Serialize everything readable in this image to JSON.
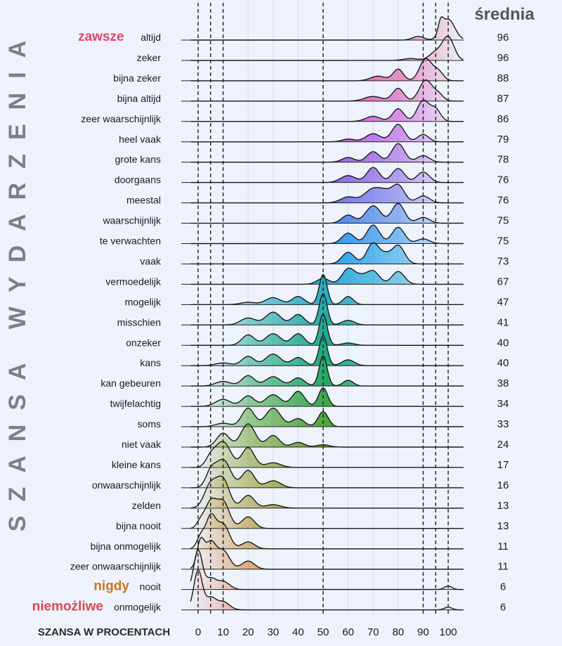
{
  "chart_data": {
    "type": "ridgeline",
    "title": "",
    "y_axis_title": "SZANSA WYDARZENIA",
    "x_axis_title": "SZANSA W PROCENTACH",
    "mean_header": "średnia",
    "xlim": [
      0,
      100
    ],
    "x_ticks": [
      0,
      10,
      20,
      30,
      40,
      50,
      60,
      70,
      80,
      90,
      100
    ],
    "dashed_reference_lines": [
      0,
      5,
      10,
      50,
      90,
      95,
      100
    ],
    "annotations": [
      {
        "text": "zawsze",
        "row": "altijd",
        "color": "#e0456e"
      },
      {
        "text": "nigdy",
        "row": "nooit",
        "color": "#d2731e"
      },
      {
        "text": "niemożliwe",
        "row": "onmogelijk",
        "color": "#e04556"
      }
    ],
    "rows": [
      {
        "label": "altijd",
        "mean": 96,
        "color": "#e34d6b",
        "peaks": [
          [
            100,
            2.6,
            0.9
          ],
          [
            97,
            1.0,
            0.5
          ],
          [
            88,
            2.2,
            0.16
          ]
        ]
      },
      {
        "label": "zeker",
        "mean": 96,
        "color": "#e84d80",
        "peaks": [
          [
            100,
            2.3,
            1.0
          ],
          [
            95,
            2.5,
            0.35
          ],
          [
            85,
            3.0,
            0.08
          ]
        ]
      },
      {
        "label": "bijna zeker",
        "mean": 88,
        "color": "#e048a2",
        "peaks": [
          [
            91,
            2.4,
            0.95
          ],
          [
            96,
            2.0,
            0.4
          ],
          [
            80,
            2.0,
            0.5
          ],
          [
            72,
            3.0,
            0.2
          ]
        ]
      },
      {
        "label": "bijna altijd",
        "mean": 87,
        "color": "#d64cbb",
        "peaks": [
          [
            91,
            2.5,
            0.9
          ],
          [
            80,
            2.2,
            0.55
          ],
          [
            96,
            2.0,
            0.3
          ],
          [
            70,
            3.5,
            0.2
          ]
        ]
      },
      {
        "label": "zeer waarschijnlijk",
        "mean": 86,
        "color": "#c84cd3",
        "peaks": [
          [
            90,
            2.4,
            0.9
          ],
          [
            95,
            2.0,
            0.5
          ],
          [
            80,
            2.2,
            0.55
          ],
          [
            70,
            3.0,
            0.22
          ]
        ]
      },
      {
        "label": "heel vaak",
        "mean": 79,
        "color": "#b24ee0",
        "peaks": [
          [
            80,
            2.5,
            0.75
          ],
          [
            70,
            3.0,
            0.35
          ],
          [
            90,
            2.2,
            0.32
          ],
          [
            60,
            2.5,
            0.12
          ]
        ]
      },
      {
        "label": "grote kans",
        "mean": 78,
        "color": "#9d56e3",
        "peaks": [
          [
            80,
            2.5,
            0.8
          ],
          [
            70,
            2.5,
            0.45
          ],
          [
            90,
            2.5,
            0.28
          ],
          [
            60,
            2.5,
            0.2
          ]
        ]
      },
      {
        "label": "doorgaans",
        "mean": 76,
        "color": "#8a62e5",
        "peaks": [
          [
            70,
            2.5,
            0.65
          ],
          [
            80,
            2.5,
            0.6
          ],
          [
            90,
            2.5,
            0.45
          ],
          [
            60,
            3.0,
            0.3
          ]
        ]
      },
      {
        "label": "meestal",
        "mean": 76,
        "color": "#6f6ee7",
        "peaks": [
          [
            80,
            2.5,
            0.75
          ],
          [
            70,
            3.5,
            0.6
          ],
          [
            75,
            2.5,
            0.3
          ],
          [
            90,
            2.5,
            0.3
          ],
          [
            60,
            3.0,
            0.25
          ]
        ]
      },
      {
        "label": "waarschijnlijk",
        "mean": 75,
        "color": "#4a82ea",
        "peaks": [
          [
            80,
            2.5,
            0.85
          ],
          [
            70,
            3.0,
            0.75
          ],
          [
            60,
            2.5,
            0.35
          ],
          [
            90,
            2.5,
            0.25
          ]
        ]
      },
      {
        "label": "te verwachten",
        "mean": 75,
        "color": "#2f93ea",
        "peaks": [
          [
            70,
            2.5,
            0.8
          ],
          [
            80,
            2.5,
            0.7
          ],
          [
            60,
            2.5,
            0.45
          ],
          [
            90,
            2.5,
            0.2
          ]
        ]
      },
      {
        "label": "vaak",
        "mean": 73,
        "color": "#24a1e6",
        "peaks": [
          [
            70,
            2.5,
            0.9
          ],
          [
            80,
            2.5,
            0.8
          ],
          [
            60,
            2.5,
            0.5
          ],
          [
            75,
            2.0,
            0.3
          ]
        ]
      },
      {
        "label": "vermoedelijk",
        "mean": 67,
        "color": "#2aa9da",
        "peaks": [
          [
            60,
            2.5,
            0.65
          ],
          [
            70,
            2.5,
            0.55
          ],
          [
            80,
            2.5,
            0.55
          ],
          [
            50,
            2.5,
            0.25
          ],
          [
            65,
            2.5,
            0.3
          ]
        ]
      },
      {
        "label": "mogelijk",
        "mean": 47,
        "color": "#2cabc2",
        "peaks": [
          [
            50,
            1.6,
            1.3
          ],
          [
            30,
            3.0,
            0.3
          ],
          [
            40,
            2.5,
            0.35
          ],
          [
            60,
            2.0,
            0.35
          ],
          [
            20,
            3.0,
            0.1
          ]
        ]
      },
      {
        "label": "misschien",
        "mean": 41,
        "color": "#25aaa8",
        "peaks": [
          [
            50,
            1.6,
            1.35
          ],
          [
            30,
            3.0,
            0.55
          ],
          [
            40,
            2.5,
            0.45
          ],
          [
            20,
            3.0,
            0.3
          ],
          [
            60,
            2.5,
            0.2
          ]
        ]
      },
      {
        "label": "onzeker",
        "mean": 40,
        "color": "#1fa891",
        "peaks": [
          [
            50,
            1.6,
            1.35
          ],
          [
            30,
            3.0,
            0.5
          ],
          [
            40,
            2.5,
            0.5
          ],
          [
            20,
            2.5,
            0.45
          ],
          [
            60,
            2.5,
            0.1
          ]
        ]
      },
      {
        "label": "kans",
        "mean": 40,
        "color": "#1ea87c",
        "peaks": [
          [
            50,
            1.6,
            1.3
          ],
          [
            30,
            3.0,
            0.5
          ],
          [
            20,
            2.5,
            0.4
          ],
          [
            40,
            2.5,
            0.35
          ],
          [
            60,
            2.5,
            0.25
          ],
          [
            10,
            3.0,
            0.12
          ]
        ]
      },
      {
        "label": "kan gebeuren",
        "mean": 38,
        "color": "#22a866",
        "peaks": [
          [
            50,
            1.6,
            1.3
          ],
          [
            30,
            3.0,
            0.4
          ],
          [
            20,
            2.5,
            0.45
          ],
          [
            40,
            2.5,
            0.35
          ],
          [
            60,
            2.0,
            0.25
          ],
          [
            10,
            3.0,
            0.2
          ]
        ]
      },
      {
        "label": "twijfelachtig",
        "mean": 34,
        "color": "#3aa74c",
        "peaks": [
          [
            40,
            2.5,
            0.65
          ],
          [
            50,
            1.8,
            0.8
          ],
          [
            30,
            3.0,
            0.5
          ],
          [
            20,
            2.5,
            0.45
          ],
          [
            10,
            3.0,
            0.3
          ]
        ]
      },
      {
        "label": "soms",
        "mean": 33,
        "color": "#4ea53a",
        "peaks": [
          [
            20,
            2.5,
            0.8
          ],
          [
            30,
            3.0,
            0.8
          ],
          [
            50,
            2.0,
            0.65
          ],
          [
            40,
            2.5,
            0.35
          ],
          [
            10,
            3.0,
            0.15
          ]
        ]
      },
      {
        "label": "niet vaak",
        "mean": 24,
        "color": "#6b9e2e",
        "peaks": [
          [
            20,
            2.8,
            1.0
          ],
          [
            10,
            2.5,
            0.6
          ],
          [
            30,
            2.5,
            0.5
          ],
          [
            40,
            2.5,
            0.2
          ],
          [
            50,
            2.5,
            0.1
          ]
        ]
      },
      {
        "label": "kleine kans",
        "mean": 17,
        "color": "#7e9a25",
        "peaks": [
          [
            10,
            3.0,
            1.1
          ],
          [
            20,
            2.5,
            0.85
          ],
          [
            5,
            2.0,
            0.4
          ],
          [
            30,
            3.0,
            0.2
          ]
        ]
      },
      {
        "label": "onwaarschijnlijk",
        "mean": 16,
        "color": "#8d9522",
        "peaks": [
          [
            10,
            3.0,
            1.2
          ],
          [
            5,
            2.0,
            0.6
          ],
          [
            20,
            2.5,
            0.75
          ],
          [
            30,
            3.0,
            0.3
          ]
        ]
      },
      {
        "label": "zelden",
        "mean": 13,
        "color": "#9e8c1f",
        "peaks": [
          [
            10,
            2.5,
            1.2
          ],
          [
            5,
            2.5,
            1.0
          ],
          [
            20,
            2.5,
            0.55
          ],
          [
            30,
            3.0,
            0.15
          ]
        ]
      },
      {
        "label": "bijna nooit",
        "mean": 13,
        "color": "#ae841d",
        "peaks": [
          [
            5,
            2.2,
            1.1
          ],
          [
            10,
            2.5,
            1.15
          ],
          [
            20,
            2.5,
            0.5
          ],
          [
            1,
            1.5,
            0.3
          ]
        ]
      },
      {
        "label": "bijna onmogelijk",
        "mean": 11,
        "color": "#bf7c1c",
        "peaks": [
          [
            5,
            2.0,
            1.35
          ],
          [
            10,
            2.5,
            1.05
          ],
          [
            1,
            1.5,
            0.5
          ],
          [
            20,
            2.5,
            0.3
          ]
        ]
      },
      {
        "label": "zeer onwaarschijnlijk",
        "mean": 11,
        "color": "#cf6f20",
        "peaks": [
          [
            1,
            1.5,
            1.2
          ],
          [
            5,
            2.0,
            1.1
          ],
          [
            10,
            2.5,
            0.8
          ],
          [
            20,
            2.5,
            0.35
          ]
        ]
      },
      {
        "label": "nooit",
        "mean": 6,
        "color": "#dc6330",
        "peaks": [
          [
            0,
            1.7,
            1.7
          ],
          [
            5,
            2.0,
            0.45
          ],
          [
            10,
            2.5,
            0.35
          ],
          [
            100,
            1.5,
            0.15
          ]
        ]
      },
      {
        "label": "onmogelijk",
        "mean": 6,
        "color": "#e15248",
        "peaks": [
          [
            0,
            1.7,
            1.7
          ],
          [
            5,
            2.0,
            0.5
          ],
          [
            10,
            2.5,
            0.35
          ],
          [
            100,
            1.5,
            0.12
          ]
        ]
      }
    ]
  }
}
